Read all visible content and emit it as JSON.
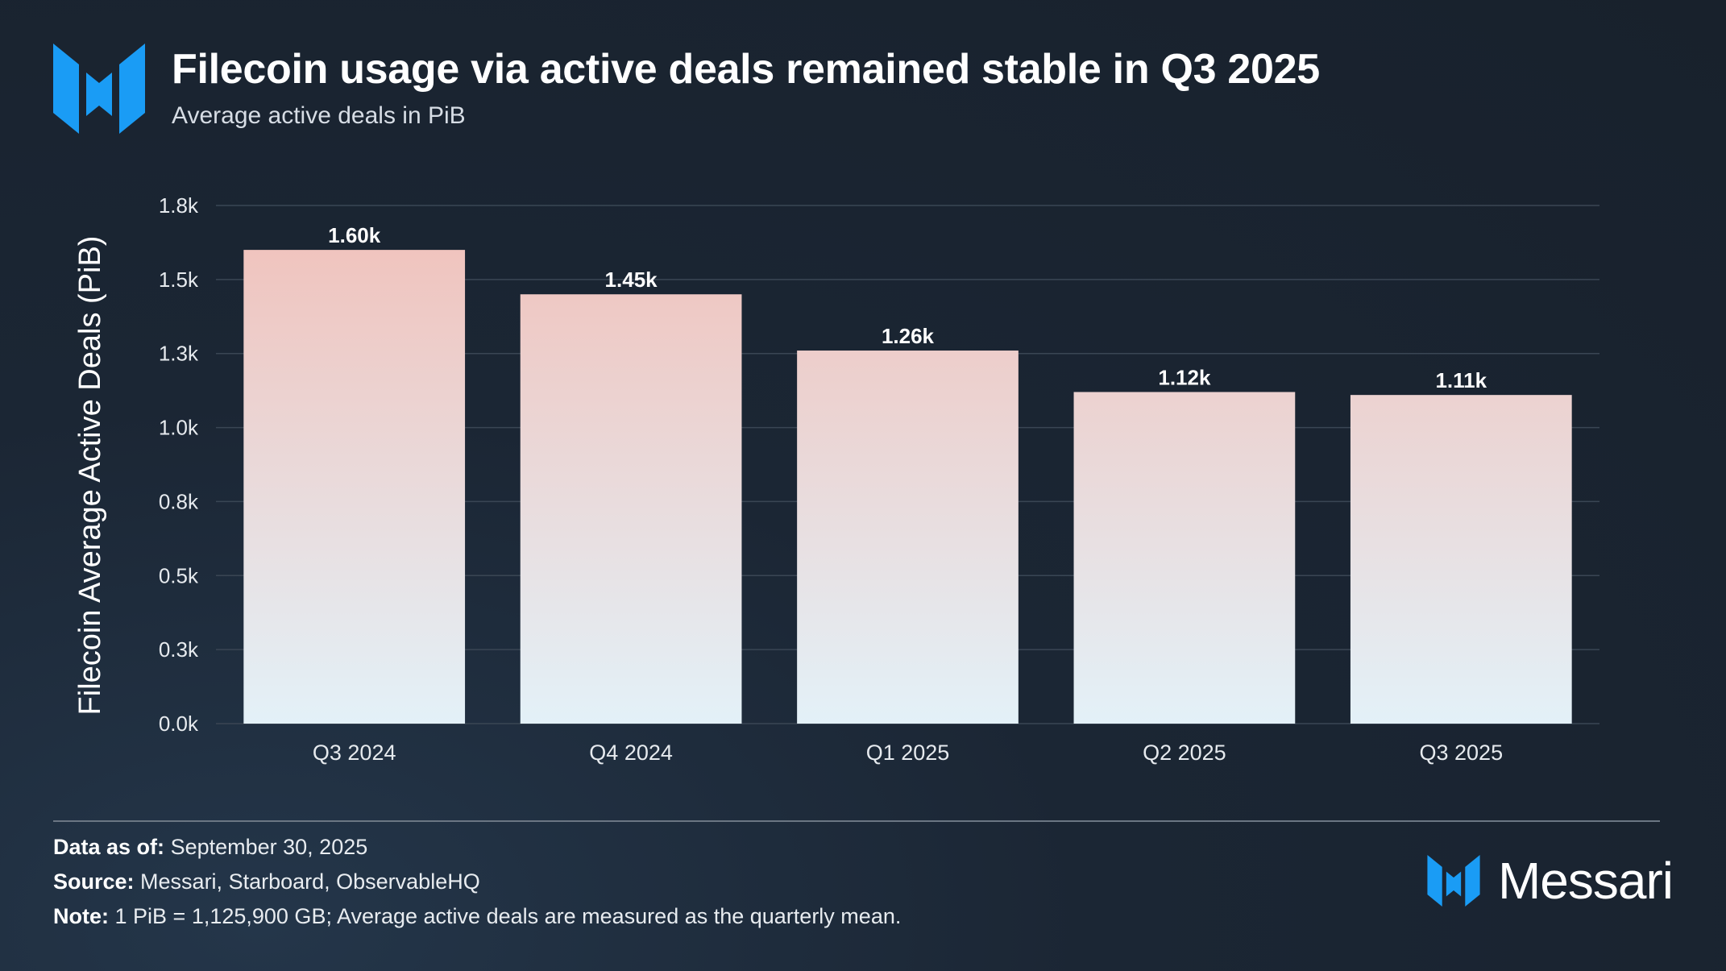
{
  "header": {
    "title": "Filecoin usage via active deals remained stable in Q3 2025",
    "subtitle": "Average active deals in PiB"
  },
  "colors": {
    "brand_blue": "#1a9cf5",
    "bar_top": "#f1c0b9",
    "bar_bottom": "#e3f1f8",
    "grid": "#3a4654",
    "axis_text": "#e6eaee"
  },
  "chart_data": {
    "type": "bar",
    "title": "Filecoin usage via active deals remained stable in Q3 2025",
    "subtitle": "Average active deals in PiB",
    "categories": [
      "Q3 2024",
      "Q4 2024",
      "Q1 2025",
      "Q2 2025",
      "Q3 2025"
    ],
    "values": [
      1600,
      1450,
      1260,
      1120,
      1110
    ],
    "data_labels": [
      "1.60k",
      "1.45k",
      "1.26k",
      "1.12k",
      "1.11k"
    ],
    "xlabel": "",
    "ylabel": "Filecoin Average Active Deals (PiB)",
    "ylim": [
      0,
      1750
    ],
    "yticks": [
      0,
      250,
      500,
      750,
      1000,
      1250,
      1500,
      1750
    ],
    "ytick_labels": [
      "0.0k",
      "0.3k",
      "0.5k",
      "0.8k",
      "1.0k",
      "1.3k",
      "1.5k",
      "1.8k"
    ],
    "grid": true
  },
  "footer": {
    "data_as_of_label": "Data as of:",
    "data_as_of_value": "September 30, 2025",
    "source_label": "Source:",
    "source_value": "Messari, Starboard, ObservableHQ",
    "note_label": "Note:",
    "note_value": "1 PiB = 1,125,900 GB; Average active deals are measured as the quarterly mean.",
    "brand_name": "Messari",
    "brand_icon": "messari-logo-icon"
  }
}
